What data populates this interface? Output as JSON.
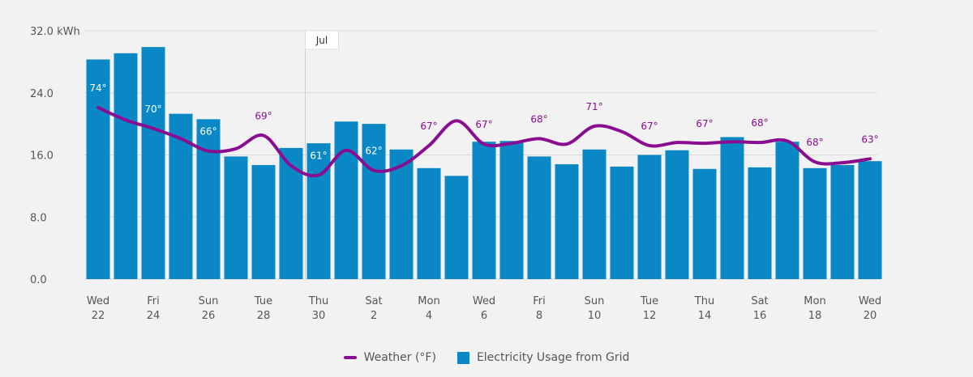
{
  "colors": {
    "bar": "#0a88c6",
    "weather": "#8a0d91",
    "grid": "#dadada",
    "marker_bg": "#ffffff"
  },
  "legend": {
    "weather": "Weather (°F)",
    "usage": "Electricity Usage from Grid"
  },
  "chart_data": {
    "type": "bar",
    "ylim": [
      0,
      32
    ],
    "yticks": [
      "0.0",
      "8.0",
      "16.0",
      "24.0",
      "32.0 kWh"
    ],
    "xtick_labels": [
      {
        "day": "Wed",
        "date": "22"
      },
      {
        "day": "Fri",
        "date": "24"
      },
      {
        "day": "Sun",
        "date": "26"
      },
      {
        "day": "Tue",
        "date": "28"
      },
      {
        "day": "Thu",
        "date": "30"
      },
      {
        "day": "Sat",
        "date": "2"
      },
      {
        "day": "Mon",
        "date": "4"
      },
      {
        "day": "Wed",
        "date": "6"
      },
      {
        "day": "Fri",
        "date": "8"
      },
      {
        "day": "Sun",
        "date": "10"
      },
      {
        "day": "Tue",
        "date": "12"
      },
      {
        "day": "Thu",
        "date": "14"
      },
      {
        "day": "Sat",
        "date": "16"
      },
      {
        "day": "Mon",
        "date": "18"
      },
      {
        "day": "Wed",
        "date": "20"
      }
    ],
    "month_marker": {
      "label": "Jul",
      "after_day_index": 8
    },
    "series": [
      {
        "name": "Electricity Usage from Grid",
        "values": [
          28.3,
          29.1,
          29.9,
          21.3,
          20.6,
          15.8,
          14.7,
          16.9,
          17.5,
          20.3,
          20.0,
          16.7,
          14.3,
          13.3,
          17.7,
          17.8,
          15.8,
          14.8,
          16.7,
          14.5,
          16.0,
          16.6,
          14.2,
          18.3,
          14.4,
          17.7,
          14.3,
          14.7,
          15.2
        ]
      },
      {
        "name": "Weather (°F)",
        "curve": [
          22.1,
          20.5,
          19.4,
          18.1,
          16.5,
          16.8,
          18.5,
          14.6,
          13.4,
          16.6,
          14.0,
          14.6,
          17.2,
          20.4,
          17.4,
          17.5,
          18.1,
          17.4,
          19.7,
          19.0,
          17.2,
          17.6,
          17.5,
          17.7,
          17.6,
          17.8,
          15.1,
          15.0,
          15.5
        ],
        "temperature_labels": [
          {
            "index": 0,
            "text": "74°"
          },
          {
            "index": 2,
            "text": "70°"
          },
          {
            "index": 4,
            "text": "66°"
          },
          {
            "index": 6,
            "text": "69°"
          },
          {
            "index": 8,
            "text": "61°"
          },
          {
            "index": 10,
            "text": "62°"
          },
          {
            "index": 12,
            "text": "67°"
          },
          {
            "index": 14,
            "text": "67°"
          },
          {
            "index": 16,
            "text": "68°"
          },
          {
            "index": 18,
            "text": "71°"
          },
          {
            "index": 20,
            "text": "67°"
          },
          {
            "index": 22,
            "text": "67°"
          },
          {
            "index": 24,
            "text": "68°"
          },
          {
            "index": 26,
            "text": "68°"
          },
          {
            "index": 28,
            "text": "63°"
          }
        ]
      }
    ]
  }
}
